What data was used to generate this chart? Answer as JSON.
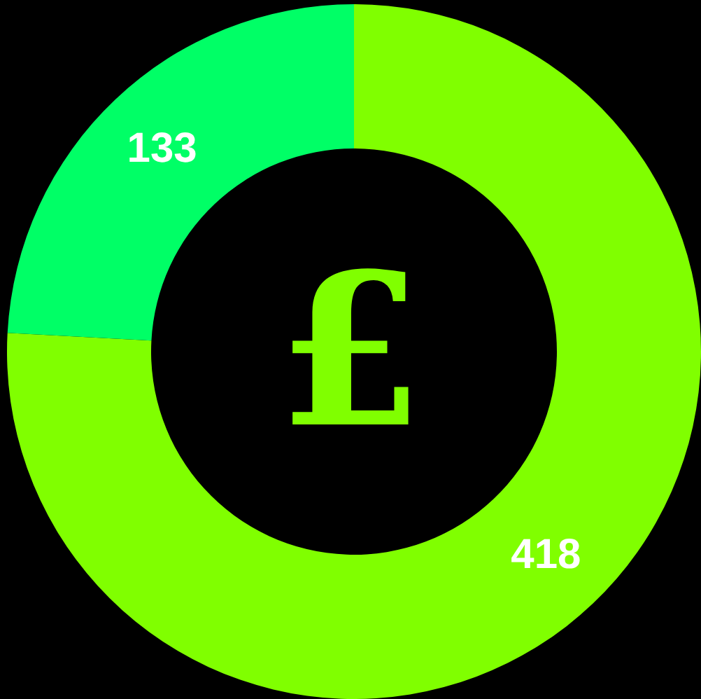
{
  "chart_data": {
    "type": "donut",
    "categories": [
      null,
      null
    ],
    "values": [
      418,
      133
    ],
    "colors": [
      "#80ff00",
      "#00ff66"
    ],
    "data_labels": true,
    "annotations": [
      "£"
    ]
  }
}
